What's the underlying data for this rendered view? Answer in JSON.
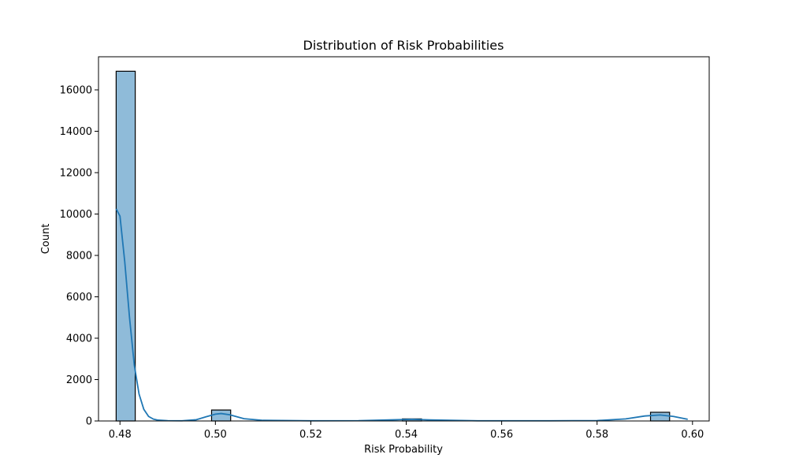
{
  "chart_data": {
    "type": "bar",
    "title": "Distribution of Risk Probabilities",
    "xlabel": "Risk Probability",
    "ylabel": "Count",
    "xlim": [
      0.4755,
      0.6035
    ],
    "ylim": [
      0,
      17600
    ],
    "xticks": [
      0.48,
      0.5,
      0.52,
      0.54,
      0.56,
      0.58,
      0.6
    ],
    "xtick_labels": [
      "0.48",
      "0.50",
      "0.52",
      "0.54",
      "0.56",
      "0.58",
      "0.60"
    ],
    "yticks": [
      0,
      2000,
      4000,
      6000,
      8000,
      10000,
      12000,
      14000,
      16000
    ],
    "ytick_labels": [
      "0",
      "2000",
      "4000",
      "6000",
      "8000",
      "10000",
      "12000",
      "14000",
      "16000"
    ],
    "grid": false,
    "bars": [
      {
        "x0": 0.4792,
        "x1": 0.4832,
        "count": 16900
      },
      {
        "x0": 0.4992,
        "x1": 0.5032,
        "count": 530
      },
      {
        "x0": 0.5392,
        "x1": 0.5432,
        "count": 100
      },
      {
        "x0": 0.5912,
        "x1": 0.5952,
        "count": 420
      }
    ],
    "kde": {
      "name": "",
      "x": [
        0.4792,
        0.48,
        0.481,
        0.482,
        0.483,
        0.484,
        0.485,
        0.486,
        0.487,
        0.488,
        0.49,
        0.493,
        0.496,
        0.498,
        0.5,
        0.5012,
        0.503,
        0.506,
        0.51,
        0.52,
        0.53,
        0.538,
        0.5412,
        0.545,
        0.555,
        0.57,
        0.58,
        0.586,
        0.59,
        0.5932,
        0.596,
        0.599
      ],
      "y": [
        10250,
        9900,
        7700,
        5000,
        2700,
        1300,
        560,
        220,
        90,
        40,
        15,
        10,
        60,
        200,
        330,
        360,
        300,
        110,
        30,
        10,
        15,
        60,
        80,
        50,
        10,
        10,
        20,
        100,
        240,
        290,
        220,
        80
      ]
    }
  }
}
